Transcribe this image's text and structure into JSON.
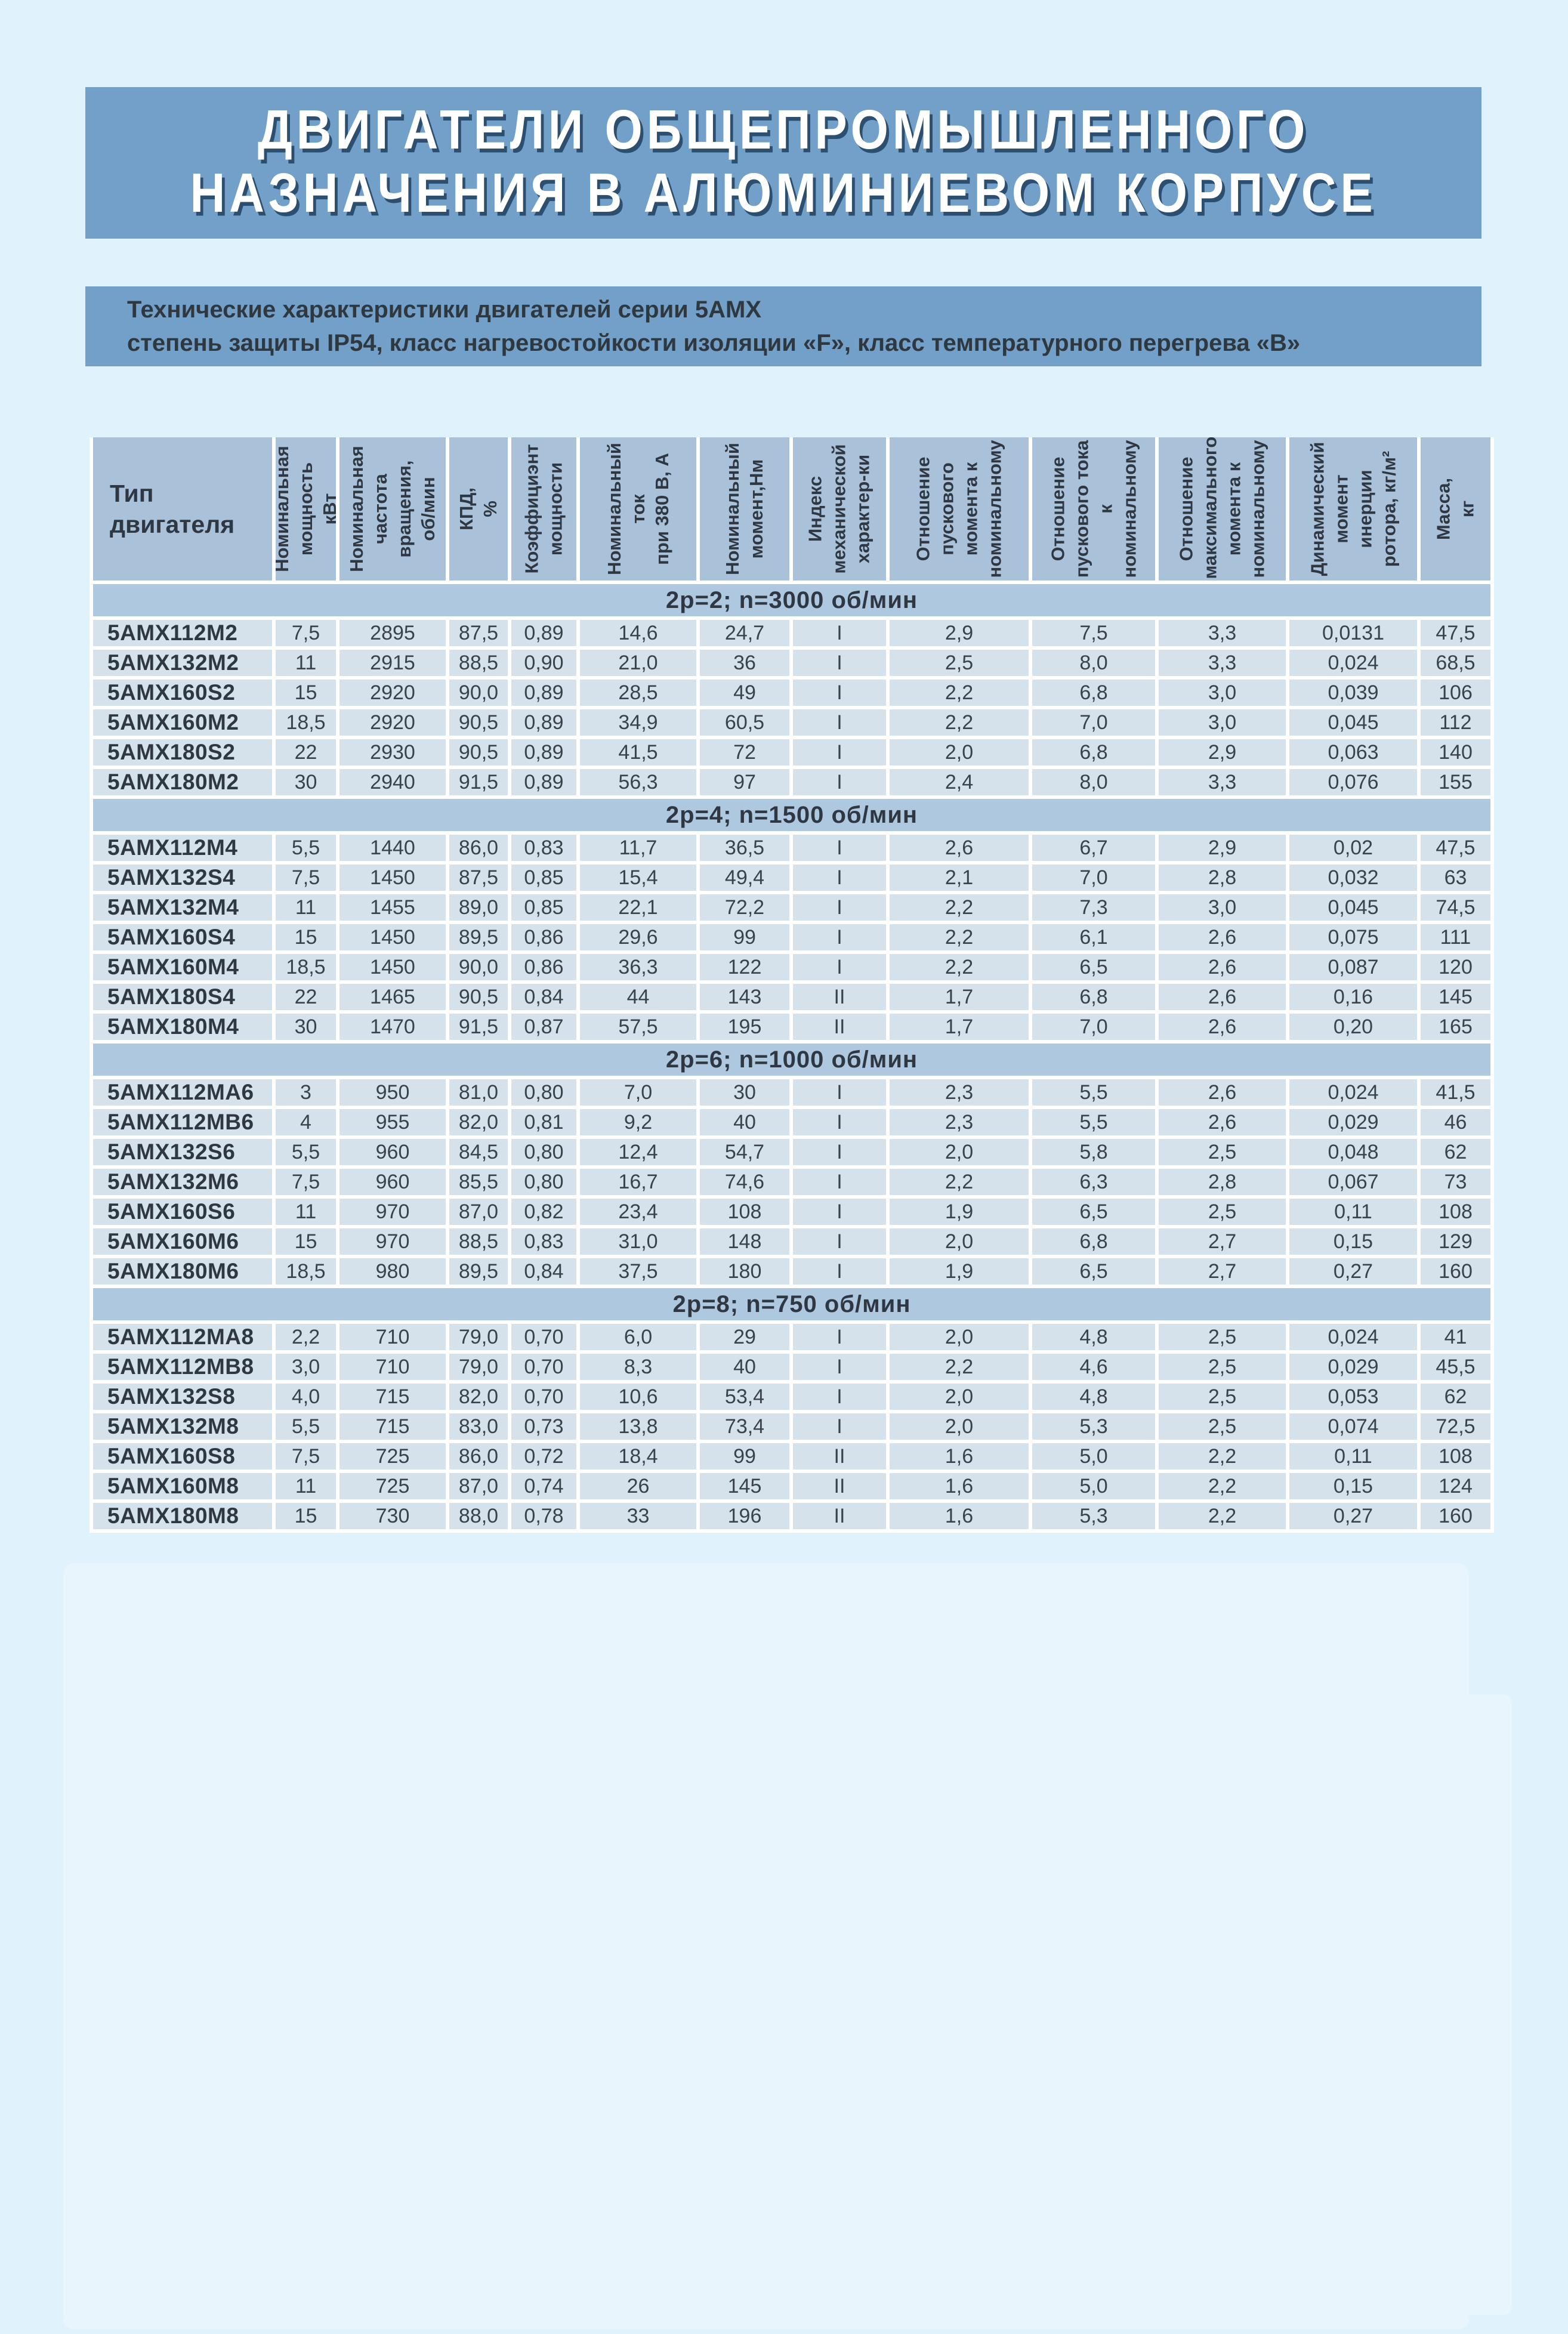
{
  "page": {
    "title_line1": "ДВИГАТЕЛИ ОБЩЕПРОМЫШЛЕННОГО",
    "title_line2": "НАЗНАЧЕНИЯ В АЛЮМИНИЕВОМ КОРПУСЕ",
    "subtitle_line1": "Технические характеристики двигателей серии 5АМХ",
    "subtitle_line2": "степень защиты IP54, класс нагревостойкости изоляции «F», класс температурного перегрева «В»"
  },
  "colors": {
    "page_bg": "#e0f2fc",
    "banner_bg": "#72a0c9",
    "header_cell_bg": "#a9c2da",
    "section_band_bg": "#aec8e0",
    "data_cell_bg": "#d5e2ec",
    "title_text": "#ffffff",
    "title_shadow": "#2c4e6f",
    "dark_text": "#2f3842"
  },
  "table": {
    "columns": [
      "Тип\nдвигателя",
      "Номинальная\nмощность кВт",
      "Номинальная\nчастота\nвращения,\nоб/мин",
      "КПД, %",
      "Коэффициэнт\nмощности",
      "Номинальный\nток\nпри 380 В, А",
      "Номинальный\nмомент,Нм",
      "Индекс\nмеханической\nхарактер-ки",
      "Отношение\nпускового\nмомента к\nноминальному",
      "Отношение\nпускового тока\nк\nноминальному",
      "Отношение\nмаксимального\nмомента к\nноминальному",
      "Динамический\nмомент\nинерции\nротора, кг/м²",
      "Масса, кг"
    ],
    "sections": [
      {
        "label": "2p=2; n=3000 об/мин",
        "rows": [
          [
            "5АМХ112М2",
            "7,5",
            "2895",
            "87,5",
            "0,89",
            "14,6",
            "24,7",
            "I",
            "2,9",
            "7,5",
            "3,3",
            "0,0131",
            "47,5"
          ],
          [
            "5АМХ132М2",
            "11",
            "2915",
            "88,5",
            "0,90",
            "21,0",
            "36",
            "I",
            "2,5",
            "8,0",
            "3,3",
            "0,024",
            "68,5"
          ],
          [
            "5АМХ160S2",
            "15",
            "2920",
            "90,0",
            "0,89",
            "28,5",
            "49",
            "I",
            "2,2",
            "6,8",
            "3,0",
            "0,039",
            "106"
          ],
          [
            "5АМХ160М2",
            "18,5",
            "2920",
            "90,5",
            "0,89",
            "34,9",
            "60,5",
            "I",
            "2,2",
            "7,0",
            "3,0",
            "0,045",
            "112"
          ],
          [
            "5АМХ180S2",
            "22",
            "2930",
            "90,5",
            "0,89",
            "41,5",
            "72",
            "I",
            "2,0",
            "6,8",
            "2,9",
            "0,063",
            "140"
          ],
          [
            "5АМХ180М2",
            "30",
            "2940",
            "91,5",
            "0,89",
            "56,3",
            "97",
            "I",
            "2,4",
            "8,0",
            "3,3",
            "0,076",
            "155"
          ]
        ]
      },
      {
        "label": "2p=4; n=1500 об/мин",
        "rows": [
          [
            "5АМХ112М4",
            "5,5",
            "1440",
            "86,0",
            "0,83",
            "11,7",
            "36,5",
            "I",
            "2,6",
            "6,7",
            "2,9",
            "0,02",
            "47,5"
          ],
          [
            "5АМХ132S4",
            "7,5",
            "1450",
            "87,5",
            "0,85",
            "15,4",
            "49,4",
            "I",
            "2,1",
            "7,0",
            "2,8",
            "0,032",
            "63"
          ],
          [
            "5АМХ132М4",
            "11",
            "1455",
            "89,0",
            "0,85",
            "22,1",
            "72,2",
            "I",
            "2,2",
            "7,3",
            "3,0",
            "0,045",
            "74,5"
          ],
          [
            "5АМХ160S4",
            "15",
            "1450",
            "89,5",
            "0,86",
            "29,6",
            "99",
            "I",
            "2,2",
            "6,1",
            "2,6",
            "0,075",
            "111"
          ],
          [
            "5АМХ160М4",
            "18,5",
            "1450",
            "90,0",
            "0,86",
            "36,3",
            "122",
            "I",
            "2,2",
            "6,5",
            "2,6",
            "0,087",
            "120"
          ],
          [
            "5АМХ180S4",
            "22",
            "1465",
            "90,5",
            "0,84",
            "44",
            "143",
            "II",
            "1,7",
            "6,8",
            "2,6",
            "0,16",
            "145"
          ],
          [
            "5АМХ180М4",
            "30",
            "1470",
            "91,5",
            "0,87",
            "57,5",
            "195",
            "II",
            "1,7",
            "7,0",
            "2,6",
            "0,20",
            "165"
          ]
        ]
      },
      {
        "label": "2p=6; n=1000 об/мин",
        "rows": [
          [
            "5АМХ112МА6",
            "3",
            "950",
            "81,0",
            "0,80",
            "7,0",
            "30",
            "I",
            "2,3",
            "5,5",
            "2,6",
            "0,024",
            "41,5"
          ],
          [
            "5АМХ112МВ6",
            "4",
            "955",
            "82,0",
            "0,81",
            "9,2",
            "40",
            "I",
            "2,3",
            "5,5",
            "2,6",
            "0,029",
            "46"
          ],
          [
            "5АМХ132S6",
            "5,5",
            "960",
            "84,5",
            "0,80",
            "12,4",
            "54,7",
            "I",
            "2,0",
            "5,8",
            "2,5",
            "0,048",
            "62"
          ],
          [
            "5АМХ132М6",
            "7,5",
            "960",
            "85,5",
            "0,80",
            "16,7",
            "74,6",
            "I",
            "2,2",
            "6,3",
            "2,8",
            "0,067",
            "73"
          ],
          [
            "5АМХ160S6",
            "11",
            "970",
            "87,0",
            "0,82",
            "23,4",
            "108",
            "I",
            "1,9",
            "6,5",
            "2,5",
            "0,11",
            "108"
          ],
          [
            "5АМХ160М6",
            "15",
            "970",
            "88,5",
            "0,83",
            "31,0",
            "148",
            "I",
            "2,0",
            "6,8",
            "2,7",
            "0,15",
            "129"
          ],
          [
            "5АМХ180М6",
            "18,5",
            "980",
            "89,5",
            "0,84",
            "37,5",
            "180",
            "I",
            "1,9",
            "6,5",
            "2,7",
            "0,27",
            "160"
          ]
        ]
      },
      {
        "label": "2p=8; n=750 об/мин",
        "rows": [
          [
            "5АМХ112МА8",
            "2,2",
            "710",
            "79,0",
            "0,70",
            "6,0",
            "29",
            "I",
            "2,0",
            "4,8",
            "2,5",
            "0,024",
            "41"
          ],
          [
            "5АМХ112МВ8",
            "3,0",
            "710",
            "79,0",
            "0,70",
            "8,3",
            "40",
            "I",
            "2,2",
            "4,6",
            "2,5",
            "0,029",
            "45,5"
          ],
          [
            "5АМХ132S8",
            "4,0",
            "715",
            "82,0",
            "0,70",
            "10,6",
            "53,4",
            "I",
            "2,0",
            "4,8",
            "2,5",
            "0,053",
            "62"
          ],
          [
            "5АМХ132М8",
            "5,5",
            "715",
            "83,0",
            "0,73",
            "13,8",
            "73,4",
            "I",
            "2,0",
            "5,3",
            "2,5",
            "0,074",
            "72,5"
          ],
          [
            "5АМХ160S8",
            "7,5",
            "725",
            "86,0",
            "0,72",
            "18,4",
            "99",
            "II",
            "1,6",
            "5,0",
            "2,2",
            "0,11",
            "108"
          ],
          [
            "5АМХ160М8",
            "11",
            "725",
            "87,0",
            "0,74",
            "26",
            "145",
            "II",
            "1,6",
            "5,0",
            "2,2",
            "0,15",
            "124"
          ],
          [
            "5АМХ180М8",
            "15",
            "730",
            "88,0",
            "0,78",
            "33",
            "196",
            "II",
            "1,6",
            "5,3",
            "2,2",
            "0,27",
            "160"
          ]
        ]
      }
    ]
  }
}
